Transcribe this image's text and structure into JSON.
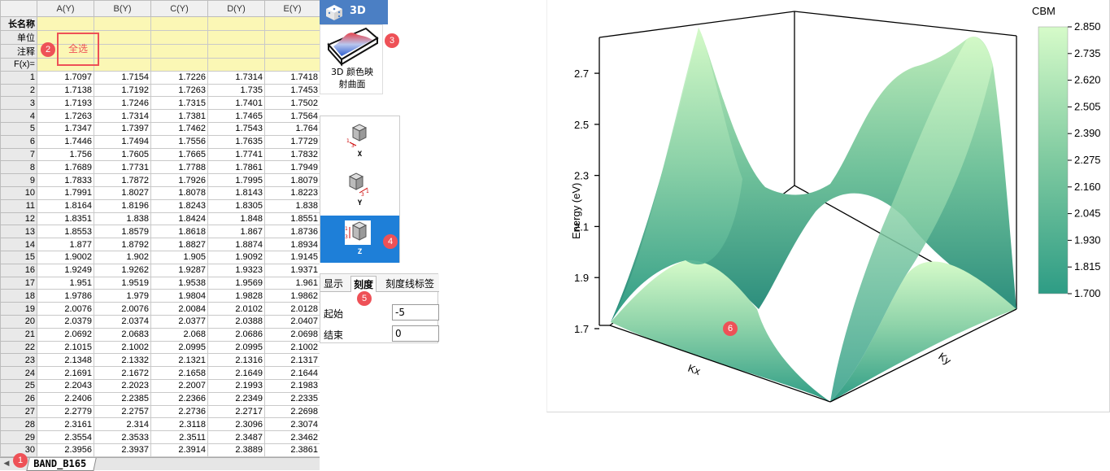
{
  "sheet": {
    "columns": [
      "A(Y)",
      "B(Y)",
      "C(Y)",
      "D(Y)",
      "E(Y)"
    ],
    "meta_rows": [
      "长名称",
      "单位",
      "注释",
      "F(x)="
    ],
    "select_all_label": "全选",
    "rows": [
      [
        "1",
        "1.7097",
        "1.7154",
        "1.7226",
        "1.7314",
        "1.7418"
      ],
      [
        "2",
        "1.7138",
        "1.7192",
        "1.7263",
        "1.735",
        "1.7453"
      ],
      [
        "3",
        "1.7193",
        "1.7246",
        "1.7315",
        "1.7401",
        "1.7502"
      ],
      [
        "4",
        "1.7263",
        "1.7314",
        "1.7381",
        "1.7465",
        "1.7564"
      ],
      [
        "5",
        "1.7347",
        "1.7397",
        "1.7462",
        "1.7543",
        "1.764"
      ],
      [
        "6",
        "1.7446",
        "1.7494",
        "1.7556",
        "1.7635",
        "1.7729"
      ],
      [
        "7",
        "1.756",
        "1.7605",
        "1.7665",
        "1.7741",
        "1.7832"
      ],
      [
        "8",
        "1.7689",
        "1.7731",
        "1.7788",
        "1.7861",
        "1.7949"
      ],
      [
        "9",
        "1.7833",
        "1.7872",
        "1.7926",
        "1.7995",
        "1.8079"
      ],
      [
        "10",
        "1.7991",
        "1.8027",
        "1.8078",
        "1.8143",
        "1.8223"
      ],
      [
        "11",
        "1.8164",
        "1.8196",
        "1.8243",
        "1.8305",
        "1.838"
      ],
      [
        "12",
        "1.8351",
        "1.838",
        "1.8424",
        "1.848",
        "1.8551"
      ],
      [
        "13",
        "1.8553",
        "1.8579",
        "1.8618",
        "1.867",
        "1.8736"
      ],
      [
        "14",
        "1.877",
        "1.8792",
        "1.8827",
        "1.8874",
        "1.8934"
      ],
      [
        "15",
        "1.9002",
        "1.902",
        "1.905",
        "1.9092",
        "1.9145"
      ],
      [
        "16",
        "1.9249",
        "1.9262",
        "1.9287",
        "1.9323",
        "1.9371"
      ],
      [
        "17",
        "1.951",
        "1.9519",
        "1.9538",
        "1.9569",
        "1.961"
      ],
      [
        "18",
        "1.9786",
        "1.979",
        "1.9804",
        "1.9828",
        "1.9862"
      ],
      [
        "19",
        "2.0076",
        "2.0076",
        "2.0084",
        "2.0102",
        "2.0128"
      ],
      [
        "20",
        "2.0379",
        "2.0374",
        "2.0377",
        "2.0388",
        "2.0407"
      ],
      [
        "21",
        "2.0692",
        "2.0683",
        "2.068",
        "2.0686",
        "2.0698"
      ],
      [
        "22",
        "2.1015",
        "2.1002",
        "2.0995",
        "2.0995",
        "2.1002"
      ],
      [
        "23",
        "2.1348",
        "2.1332",
        "2.1321",
        "2.1316",
        "2.1317"
      ],
      [
        "24",
        "2.1691",
        "2.1672",
        "2.1658",
        "2.1649",
        "2.1644"
      ],
      [
        "25",
        "2.2043",
        "2.2023",
        "2.2007",
        "2.1993",
        "2.1983"
      ],
      [
        "26",
        "2.2406",
        "2.2385",
        "2.2366",
        "2.2349",
        "2.2335"
      ],
      [
        "27",
        "2.2779",
        "2.2757",
        "2.2736",
        "2.2717",
        "2.2698"
      ],
      [
        "28",
        "2.3161",
        "2.314",
        "2.3118",
        "2.3096",
        "2.3074"
      ],
      [
        "29",
        "2.3554",
        "2.3533",
        "2.3511",
        "2.3487",
        "2.3462"
      ],
      [
        "30",
        "2.3956",
        "2.3937",
        "2.3914",
        "2.3889",
        "2.3861"
      ]
    ],
    "tab_label": "BAND_B165"
  },
  "gallery": {
    "header_label": "3D",
    "button_caption_1": "3D 颜色映",
    "button_caption_2": "射曲面"
  },
  "axis_selector": {
    "items": [
      "X",
      "Y",
      "Z"
    ],
    "selected": "Z"
  },
  "scale_panel": {
    "tabs": [
      "显示",
      "刻度",
      "刻度线标签"
    ],
    "active_tab": "刻度",
    "from_label": "起始",
    "from_value": "-5",
    "to_label": "结束",
    "to_value": "0"
  },
  "badges": [
    "1",
    "2",
    "3",
    "4",
    "5",
    "6"
  ],
  "graph": {
    "z_axis_title": "Energy (eV)",
    "x_axis_title": "Kx",
    "y_axis_title": "Ky",
    "z_ticks": [
      "1.7",
      "1.9",
      "2.1",
      "2.3",
      "2.5",
      "2.7"
    ],
    "colorbar_title": "CBM",
    "colorbar_labels": [
      "2.850",
      "2.735",
      "2.620",
      "2.505",
      "2.390",
      "2.275",
      "2.160",
      "2.045",
      "1.930",
      "1.815",
      "1.700"
    ],
    "colors": {
      "high": "#d6fbc9",
      "low": "#2e9c85"
    }
  },
  "chart_data": {
    "type": "surface",
    "title": "",
    "z_label": "Energy (eV)",
    "x_label": "Kx",
    "y_label": "Ky",
    "z_range": [
      1.7,
      2.85
    ],
    "z_ticks": [
      1.7,
      1.9,
      2.1,
      2.3,
      2.5,
      2.7
    ],
    "colorbar": {
      "title": "CBM",
      "min": 1.7,
      "max": 2.85,
      "ticks": [
        1.7,
        1.815,
        1.93,
        2.045,
        2.16,
        2.275,
        2.39,
        2.505,
        2.62,
        2.735,
        2.85
      ]
    }
  }
}
